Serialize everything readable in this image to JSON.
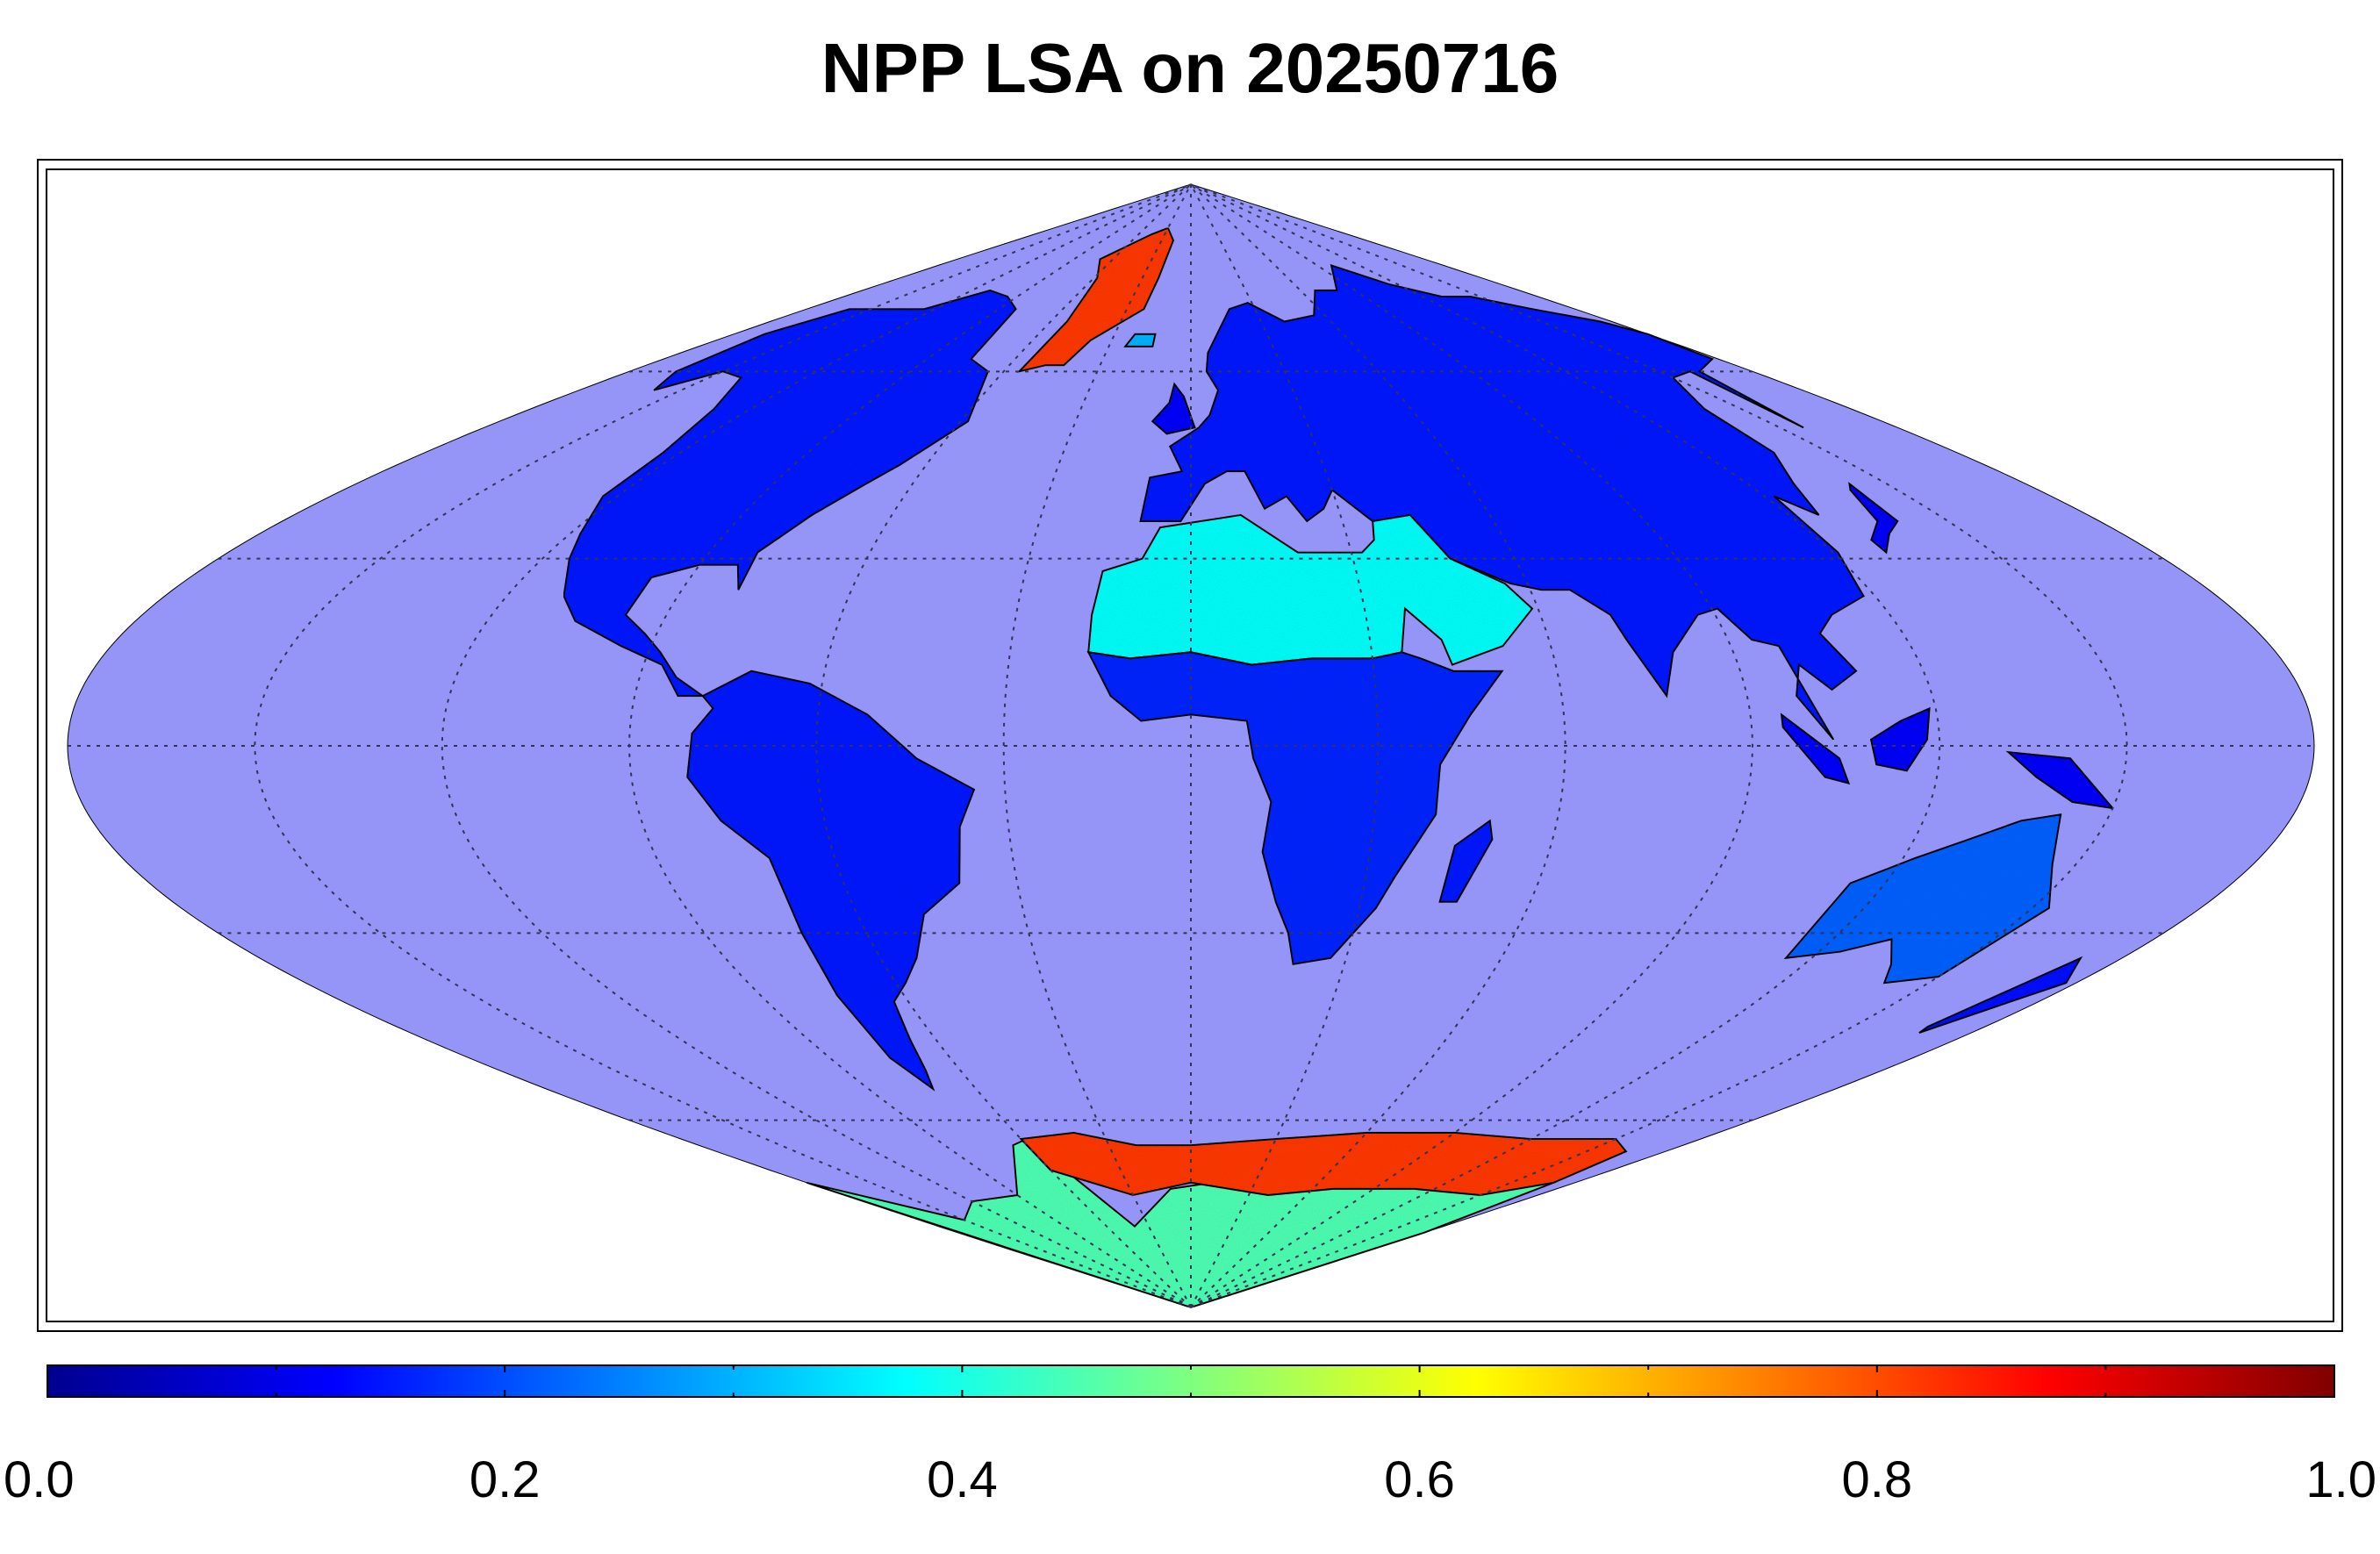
{
  "title": "NPP LSA on 20250716",
  "projection": "sinusoidal",
  "colors": {
    "ocean": "#9595f8",
    "background": "#ffffff",
    "graticule": "#333355",
    "coastline": "#000000"
  },
  "colorbar": {
    "colormap": "jet",
    "range": [
      0.0,
      1.0
    ],
    "tick_labels": [
      "0.0",
      "0.2",
      "0.4",
      "0.6",
      "0.8",
      "1.0"
    ],
    "tick_values": [
      0.0,
      0.2,
      0.4,
      0.6,
      0.8,
      1.0
    ],
    "minor_tick_values": [
      0.1,
      0.3,
      0.5,
      0.7,
      0.9
    ]
  },
  "graticule": {
    "meridians_deg": [
      -150,
      -120,
      -90,
      -60,
      -30,
      0,
      30,
      60,
      90,
      120,
      150
    ],
    "parallels_deg": [
      -60,
      -30,
      0,
      30,
      60
    ]
  },
  "land_albedo_regions": [
    {
      "name": "North America",
      "value": 0.15
    },
    {
      "name": "South America",
      "value": 0.15
    },
    {
      "name": "Europe and Asia",
      "value": 0.15
    },
    {
      "name": "Sahara and Arabia",
      "value": 0.38
    },
    {
      "name": "Central and Southern Africa",
      "value": 0.16
    },
    {
      "name": "Australia",
      "value": 0.22
    },
    {
      "name": "Greenland",
      "value": 0.82
    },
    {
      "name": "Antarctica coastal",
      "value": 0.45
    },
    {
      "name": "Antarctic sea ice",
      "value": 0.82
    }
  ]
}
